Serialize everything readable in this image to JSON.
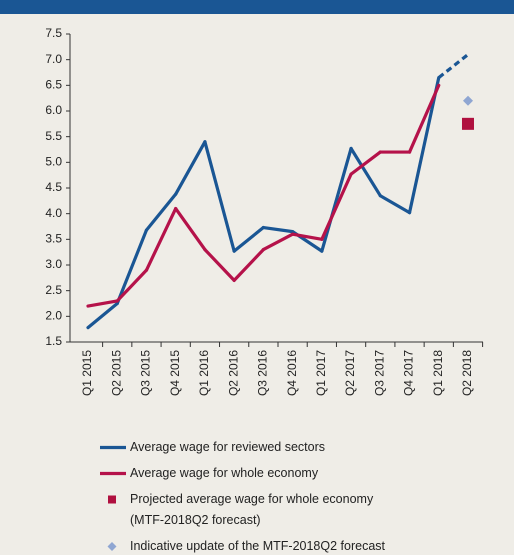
{
  "chart_data": {
    "type": "line",
    "categories": [
      "Q1 2015",
      "Q2 2015",
      "Q3 2015",
      "Q4 2015",
      "Q1 2016",
      "Q2 2016",
      "Q3 2016",
      "Q4 2016",
      "Q1 2017",
      "Q2 2017",
      "Q3 2017",
      "Q4 2017",
      "Q1 2018",
      "Q2 2018"
    ],
    "series": [
      {
        "name": "Average wage for reviewed sectors",
        "color": "#1a5694",
        "marker": "line",
        "dashed_from_index": 12,
        "values": [
          1.78,
          2.25,
          3.68,
          4.38,
          5.4,
          3.27,
          3.73,
          3.65,
          3.27,
          5.27,
          4.35,
          4.02,
          6.65,
          7.1
        ]
      },
      {
        "name": "Average wage for whole economy",
        "color": "#b5124a",
        "marker": "line",
        "values": [
          2.2,
          2.3,
          2.9,
          4.1,
          3.3,
          2.7,
          3.3,
          3.6,
          3.5,
          4.77,
          5.2,
          5.2,
          6.5,
          null
        ]
      },
      {
        "name": "Projected average wage for whole economy (MTF-2018Q2 forecast)",
        "color": "#b0103f",
        "marker": "square",
        "values": [
          null,
          null,
          null,
          null,
          null,
          null,
          null,
          null,
          null,
          null,
          null,
          null,
          null,
          5.75
        ]
      },
      {
        "name": "Indicative update of the MTF-2018Q2 forecast",
        "color": "#8fa6d2",
        "marker": "diamond",
        "values": [
          null,
          null,
          null,
          null,
          null,
          null,
          null,
          null,
          null,
          null,
          null,
          null,
          null,
          6.2
        ]
      }
    ],
    "ylim": [
      1.5,
      7.5
    ],
    "yticks": [
      1.5,
      {
        "value": 2,
        "label": "2.0"
      },
      2.5,
      {
        "value": 3,
        "label": "3.0"
      },
      3.5,
      {
        "value": 4,
        "label": "4.0"
      },
      4.5,
      {
        "value": 5,
        "label": "5.0"
      },
      5.5,
      {
        "value": 6,
        "label": "6.0"
      },
      6.5,
      {
        "value": 7,
        "label": "7.0"
      },
      7.5
    ],
    "grid": false
  }
}
